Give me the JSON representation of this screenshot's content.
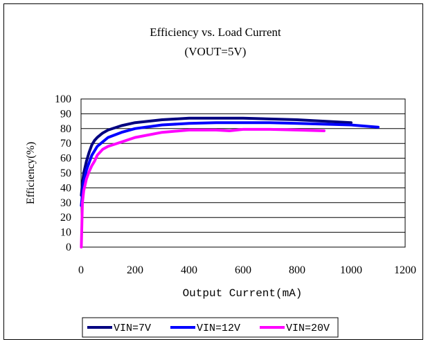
{
  "chart_data": {
    "type": "line",
    "title": "Efficiency vs. Load Current",
    "subtitle": "(VOUT=5V)",
    "xlabel": "Output Current(mA)",
    "ylabel": "Efficiency(%)",
    "xlim": [
      0,
      1200
    ],
    "ylim": [
      0,
      100
    ],
    "xticks": [
      0,
      200,
      400,
      600,
      800,
      1000,
      1200
    ],
    "yticks": [
      0,
      10,
      20,
      30,
      40,
      50,
      60,
      70,
      80,
      90,
      100
    ],
    "grid": "horizontal",
    "legend_position": "bottom",
    "series": [
      {
        "name": "VIN=7V",
        "color": "#000080",
        "x": [
          1,
          5,
          10,
          20,
          30,
          40,
          50,
          60,
          80,
          100,
          150,
          200,
          300,
          400,
          500,
          600,
          700,
          800,
          900,
          1000
        ],
        "values": [
          35,
          43,
          50,
          58,
          64,
          69,
          72,
          74,
          77,
          79,
          82,
          84,
          86,
          87,
          87,
          87,
          86.5,
          86,
          85,
          84
        ]
      },
      {
        "name": "VIN=12V",
        "color": "#0000FF",
        "x": [
          1,
          5,
          10,
          20,
          30,
          40,
          50,
          60,
          80,
          100,
          150,
          200,
          300,
          400,
          500,
          600,
          700,
          800,
          900,
          1000,
          1100
        ],
        "values": [
          28,
          36,
          44,
          52,
          57,
          62,
          65,
          68,
          71,
          74,
          77.5,
          80,
          82.5,
          83.5,
          84,
          84,
          84,
          83.5,
          83,
          82.5,
          81
        ]
      },
      {
        "name": "VIN=20V",
        "color": "#FF00FF",
        "x": [
          1,
          5,
          10,
          20,
          30,
          40,
          50,
          60,
          80,
          100,
          150,
          200,
          300,
          400,
          500,
          550,
          600,
          700,
          800,
          900
        ],
        "values": [
          0,
          30,
          38,
          46,
          51,
          55,
          58,
          62,
          66,
          68,
          71,
          74,
          77.5,
          79,
          79,
          78.5,
          79.5,
          79.5,
          79,
          78.5
        ]
      }
    ]
  }
}
